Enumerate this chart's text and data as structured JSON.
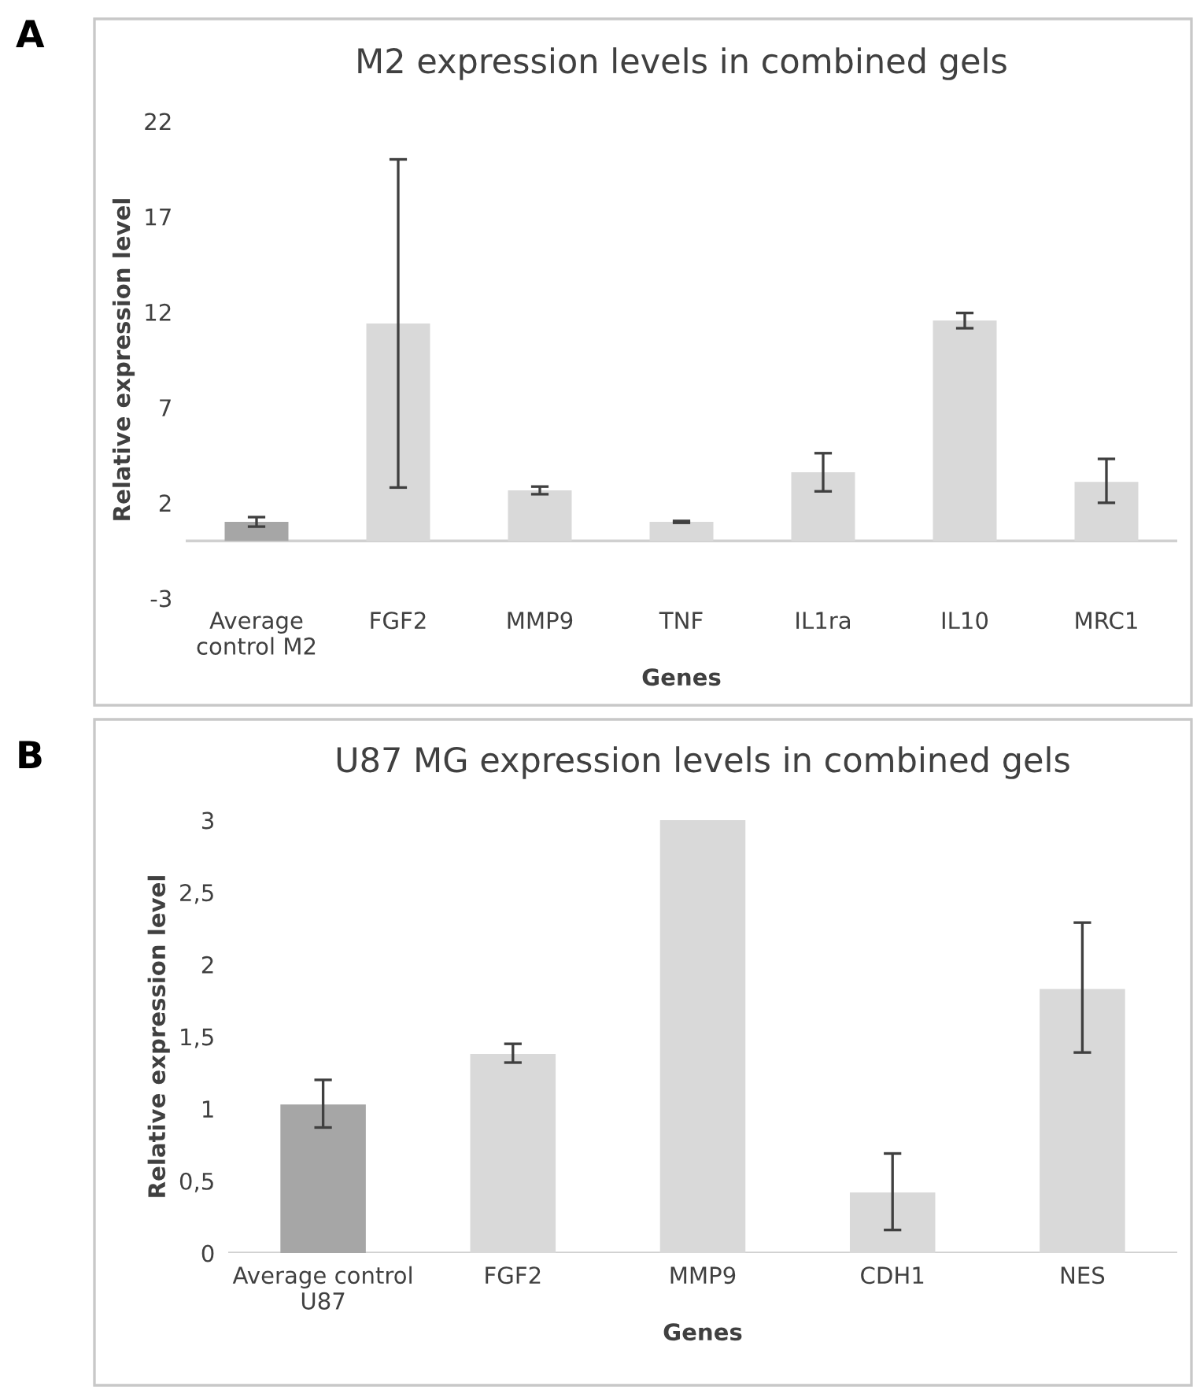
{
  "chart_data": [
    {
      "type": "bar",
      "title": "M2 expression levels in combined gels",
      "xlabel": "Genes",
      "ylabel": "Relative expression level",
      "annotations": [
        "A"
      ],
      "categories": [
        "Average\ncontrol M2",
        "FGF2",
        "MMP9",
        "TNF",
        "IL1ra",
        "IL10",
        "MRC1"
      ],
      "values": [
        1.0,
        11.4,
        2.65,
        1.0,
        3.6,
        11.55,
        3.1
      ],
      "errors": [
        0.25,
        [
          2.8,
          20.0
        ],
        0.2,
        0.05,
        [
          2.6,
          4.6
        ],
        0.4,
        [
          2.0,
          4.3
        ]
      ],
      "colors": [
        "#a6a6a6",
        "#d9d9d9",
        "#d9d9d9",
        "#d9d9d9",
        "#d9d9d9",
        "#d9d9d9",
        "#d9d9d9"
      ],
      "ylim": [
        -3,
        22
      ],
      "yticks": [
        -3,
        2,
        7,
        12,
        17,
        22
      ],
      "grid": false,
      "legend": false
    },
    {
      "type": "bar",
      "title": "U87 MG expression levels in combined gels",
      "xlabel": "Genes",
      "ylabel": "Relative expression level",
      "annotations": [
        "B"
      ],
      "categories": [
        "Average control\nU87",
        "FGF2",
        "MMP9",
        "CDH1",
        "NES"
      ],
      "values": [
        1.03,
        1.38,
        3.0,
        0.42,
        1.83
      ],
      "errors": [
        [
          0.87,
          1.2
        ],
        [
          1.32,
          1.45
        ],
        null,
        [
          0.16,
          0.69
        ],
        [
          1.39,
          2.29
        ]
      ],
      "colors": [
        "#a6a6a6",
        "#d9d9d9",
        "#d9d9d9",
        "#d9d9d9",
        "#d9d9d9"
      ],
      "ylim": [
        0,
        3
      ],
      "yticks": [
        0,
        {
          "value": 0.5,
          "label": "0,5"
        },
        1,
        {
          "value": 1.5,
          "label": "1,5"
        },
        2,
        {
          "value": 2.5,
          "label": "2,5"
        },
        3
      ],
      "grid": false,
      "legend": false
    }
  ]
}
